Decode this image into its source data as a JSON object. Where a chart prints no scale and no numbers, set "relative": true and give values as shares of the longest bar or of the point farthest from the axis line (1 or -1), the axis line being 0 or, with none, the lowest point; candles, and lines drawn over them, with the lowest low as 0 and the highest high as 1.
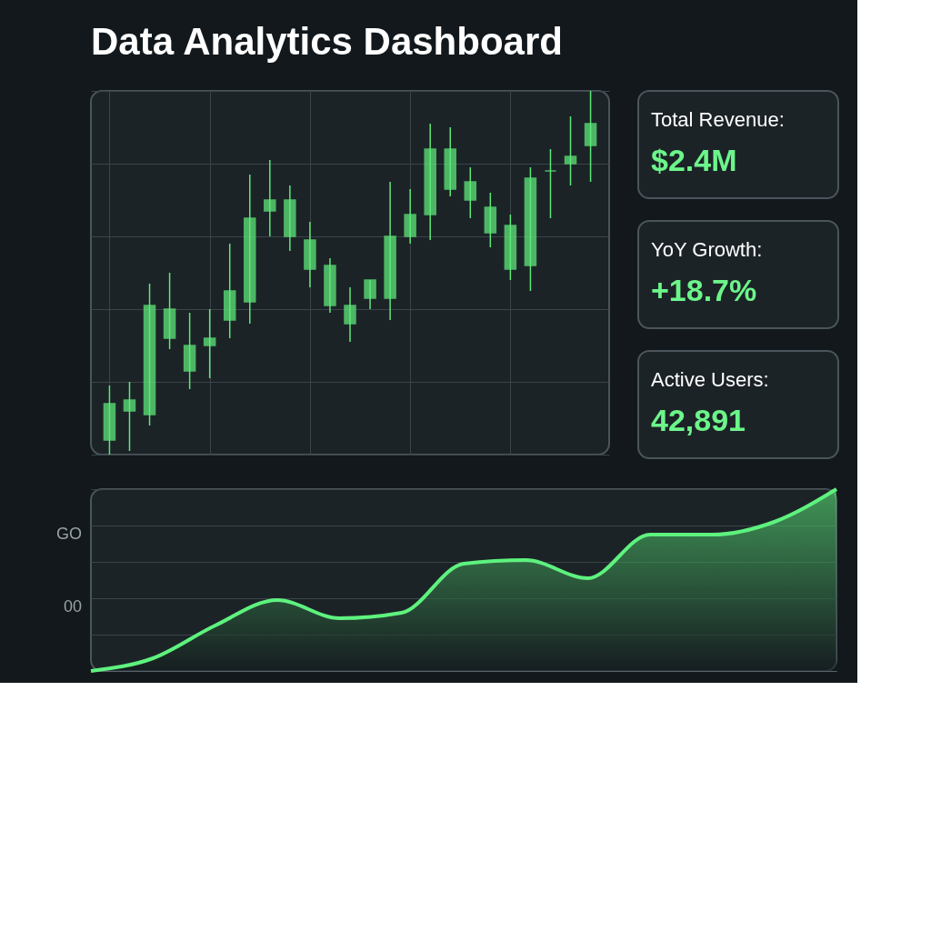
{
  "chart_data": [
    {
      "type": "candlestick",
      "title": "Data Analytics Dashboard",
      "relative": true,
      "grid": true,
      "color": "#5ee87a",
      "categories": [
        null,
        null,
        null,
        null,
        null,
        null,
        null,
        null,
        null,
        null,
        null,
        null,
        null,
        null,
        null,
        null,
        null,
        null,
        null,
        null,
        null,
        null,
        null,
        null,
        null
      ],
      "ohlc": [
        [
          0.04,
          0.19,
          0,
          0.14
        ],
        [
          0.12,
          0.2,
          0.01,
          0.15
        ],
        [
          0.11,
          0.47,
          0.08,
          0.41
        ],
        [
          0.32,
          0.5,
          0.29,
          0.4
        ],
        [
          0.23,
          0.39,
          0.18,
          0.3
        ],
        [
          0.3,
          0.4,
          0.21,
          0.32
        ],
        [
          0.37,
          0.58,
          0.32,
          0.45
        ],
        [
          0.42,
          0.77,
          0.36,
          0.65
        ],
        [
          0.67,
          0.81,
          0.6,
          0.7
        ],
        [
          0.6,
          0.74,
          0.56,
          0.7
        ],
        [
          0.51,
          0.64,
          0.46,
          0.59
        ],
        [
          0.41,
          0.54,
          0.39,
          0.52
        ],
        [
          0.36,
          0.46,
          0.31,
          0.41
        ],
        [
          0.43,
          0.48,
          0.4,
          0.48
        ],
        [
          0.43,
          0.75,
          0.37,
          0.6
        ],
        [
          0.6,
          0.73,
          0.58,
          0.66
        ],
        [
          0.66,
          0.91,
          0.59,
          0.84
        ],
        [
          0.73,
          0.9,
          0.71,
          0.84
        ],
        [
          0.7,
          0.79,
          0.65,
          0.75
        ],
        [
          0.61,
          0.72,
          0.57,
          0.68
        ],
        [
          0.51,
          0.66,
          0.48,
          0.63
        ],
        [
          0.52,
          0.79,
          0.45,
          0.76
        ],
        [
          0.78,
          0.84,
          0.65,
          0.78
        ],
        [
          0.8,
          0.93,
          0.74,
          0.82
        ],
        [
          0.85,
          1,
          0.75,
          0.91
        ]
      ]
    },
    {
      "type": "other",
      "title": "Total Revenue:",
      "annotations": [
        "$2.4M"
      ]
    },
    {
      "type": "other",
      "title": "YoY Growth:",
      "annotations": [
        "+18.7%"
      ]
    },
    {
      "type": "other",
      "title": "Active Users:",
      "annotations": [
        "42,891"
      ]
    },
    {
      "type": "area",
      "relative": true,
      "grid": "y",
      "annotations": [
        "GO",
        "00"
      ],
      "categories": [
        null,
        null,
        null,
        null,
        null,
        null,
        null,
        null,
        null,
        null,
        null,
        null,
        null
      ],
      "series": [
        {
          "color": "#5ef27e",
          "values": [
            0,
            0.07,
            0.25,
            0.39,
            0.29,
            0.32,
            0.59,
            0.61,
            0.51,
            0.75,
            0.75,
            0.82,
            1
          ]
        }
      ]
    }
  ]
}
